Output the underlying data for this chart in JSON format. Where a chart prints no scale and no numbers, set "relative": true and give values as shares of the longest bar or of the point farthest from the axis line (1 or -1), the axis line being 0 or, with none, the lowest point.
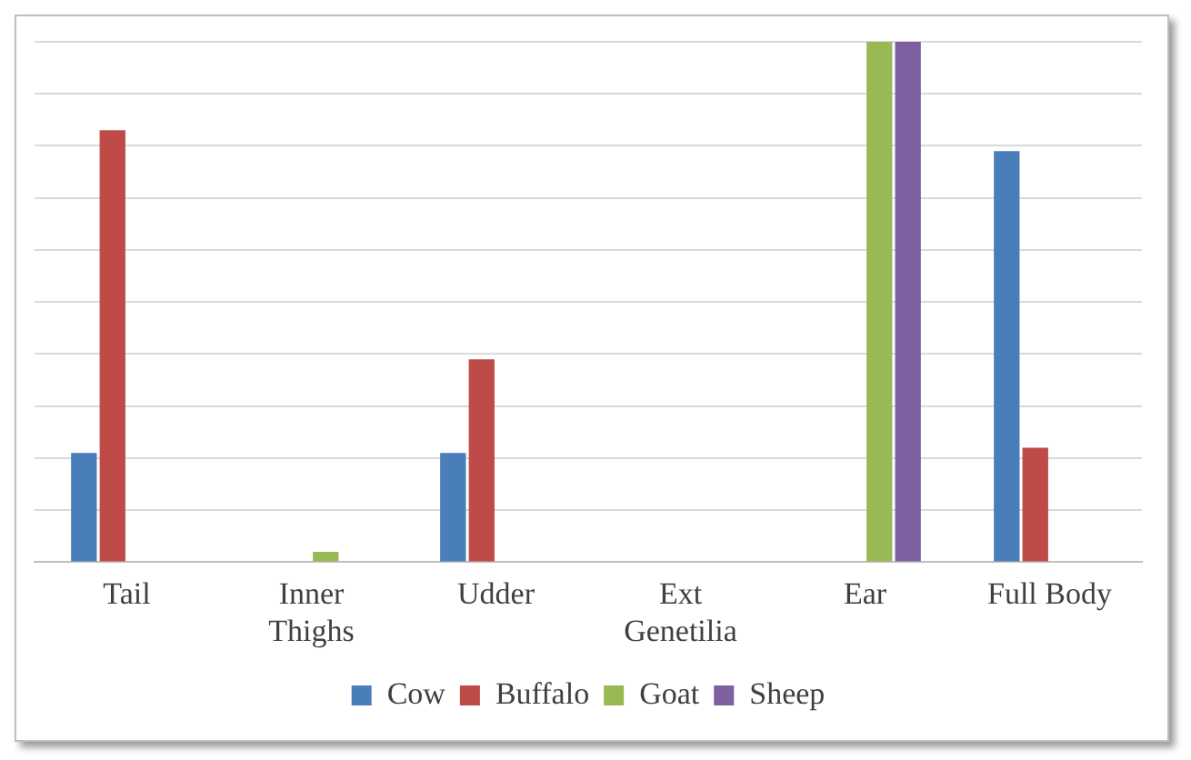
{
  "chart_data": {
    "type": "bar",
    "relative": true,
    "categories": [
      "Tail",
      "Inner Thighs",
      "Udder",
      "Ext Genetilia",
      "Ear",
      "Full Body"
    ],
    "series": [
      {
        "name": "Cow",
        "color": "#4a7ebb",
        "values": [
          0.21,
          null,
          0.21,
          null,
          null,
          0.79
        ]
      },
      {
        "name": "Buffalo",
        "color": "#be4b48",
        "values": [
          0.83,
          null,
          0.39,
          null,
          null,
          0.22
        ]
      },
      {
        "name": "Goat",
        "color": "#98b954",
        "values": [
          null,
          0.02,
          null,
          null,
          1,
          null
        ]
      },
      {
        "name": "Sheep",
        "color": "#7d60a0",
        "values": [
          null,
          null,
          null,
          null,
          1,
          null
        ]
      }
    ],
    "grid": "y",
    "legend": "bottom"
  }
}
